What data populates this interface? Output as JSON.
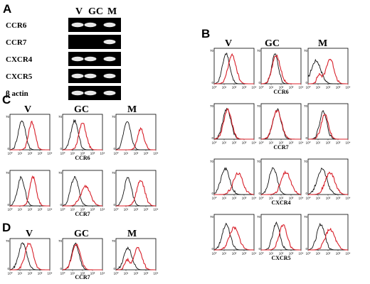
{
  "panels": {
    "A": {
      "letter": "A",
      "columns": [
        "V",
        "GC",
        "M"
      ],
      "rows": [
        {
          "gene": "CCR6",
          "bands": [
            true,
            true,
            true
          ]
        },
        {
          "gene": "CCR7",
          "bands": [
            false,
            false,
            true
          ]
        },
        {
          "gene": "CXCR4",
          "bands": [
            true,
            true,
            true
          ]
        },
        {
          "gene": "CXCR5",
          "bands": [
            true,
            true,
            true
          ]
        },
        {
          "gene": "β actin",
          "bands": [
            true,
            true,
            true
          ]
        }
      ]
    },
    "B": {
      "letter": "B",
      "columns": [
        "V",
        "GC",
        "M"
      ],
      "markers": [
        "CCR6",
        "CCR7",
        "CXCR4",
        "CXCR5"
      ]
    },
    "C": {
      "letter": "C",
      "columns": [
        "V",
        "GC",
        "M"
      ],
      "markers": [
        "CCR6",
        "CCR7"
      ]
    },
    "D": {
      "letter": "D",
      "columns": [
        "V",
        "GC",
        "M"
      ],
      "markers": [
        "CCR7"
      ]
    }
  },
  "axis_ticks": {
    "x": [
      "10⁰",
      "10¹",
      "10²",
      "10³",
      "10⁴"
    ],
    "y_top": "70",
    "y_bottom": "0"
  },
  "colors": {
    "control_trace": "#111111",
    "stained_trace": "#d8202a"
  }
}
